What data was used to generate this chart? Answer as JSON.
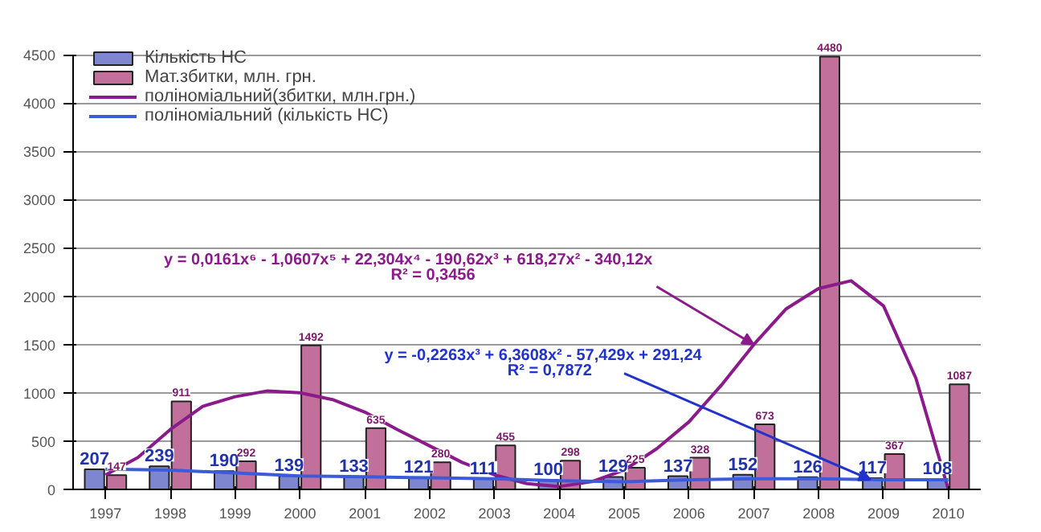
{
  "chart_data": {
    "type": "bar",
    "x": [
      1997,
      1998,
      1999,
      2000,
      2001,
      2002,
      2003,
      2004,
      2005,
      2006,
      2007,
      2008,
      2009,
      2010
    ],
    "xlim": [
      1996.5,
      2010.5
    ],
    "xticks": [
      1997,
      1998,
      1999,
      2000,
      2001,
      2002,
      2003,
      2004,
      2005,
      2006,
      2007,
      2008,
      2009,
      2010
    ],
    "ylim": [
      0,
      4500
    ],
    "yticks": [
      0,
      500,
      1000,
      1500,
      2000,
      2500,
      3000,
      3500,
      4000,
      4500
    ],
    "grid": "y",
    "legend": "top left",
    "series": [
      {
        "name": "Кількість НС",
        "color": "#7f86d0",
        "values": [
          207,
          239,
          190,
          139,
          133,
          121,
          111,
          100,
          129,
          137,
          152,
          126,
          117,
          108
        ],
        "value_labels": [
          "207",
          "239",
          "190",
          "139",
          "133",
          "121",
          "111",
          "100",
          "129",
          "137",
          "152",
          "126",
          "117",
          "108"
        ]
      },
      {
        "name": "Мат.збитки, млн. грн.",
        "color": "#c0709a",
        "values": [
          147,
          911,
          292,
          1492,
          635,
          280,
          455,
          298,
          225,
          328,
          673,
          4480,
          367,
          1087
        ],
        "value_labels": [
          "147",
          "911",
          "292",
          "1492",
          "635",
          "280",
          "455",
          "298",
          "225",
          "328",
          "673",
          "4480",
          "367",
          "1087"
        ]
      },
      {
        "name": "поліноміальний(збитки, млн.грн.)",
        "type": "line",
        "color": "#8b1a8b",
        "x": [
          1997,
          1997.5,
          1998,
          1998.5,
          1999,
          1999.5,
          2000,
          2000.5,
          2001,
          2001.5,
          2002,
          2002.5,
          2003,
          2003.5,
          2004,
          2004.5,
          2005,
          2005.5,
          2006,
          2006.5,
          2007,
          2007.5,
          2008,
          2008.5,
          2009,
          2009.5,
          2010
        ],
        "values": [
          150,
          330,
          620,
          860,
          960,
          1020,
          1000,
          930,
          800,
          620,
          450,
          280,
          150,
          60,
          30,
          80,
          200,
          420,
          700,
          1080,
          1500,
          1870,
          2080,
          2160,
          1900,
          1150,
          0
        ]
      },
      {
        "name": "поліноміальний (кількість НС)",
        "type": "line",
        "color": "#3b5bdb",
        "x": [
          1997,
          1998,
          1999,
          2000,
          2001,
          2002,
          2003,
          2004,
          2005,
          2006,
          2007,
          2008,
          2009,
          2010
        ],
        "values": [
          210,
          200,
          170,
          140,
          130,
          120,
          110,
          90,
          80,
          100,
          110,
          110,
          100,
          100
        ]
      }
    ],
    "annotations": [
      {
        "text": "y = 0,0161x⁶ - 1,0607x⁵ + 22,304x⁴ - 190,62x³ + 618,27x² - 340,12x",
        "x": 2007,
        "y": 1500
      },
      "R² = 0,3456",
      {
        "text": "y = -0,2263x³ + 6,3608x² - 57,429x + 291,24",
        "x": 2008.8,
        "y": 100
      },
      "R² = 0,7872"
    ]
  }
}
